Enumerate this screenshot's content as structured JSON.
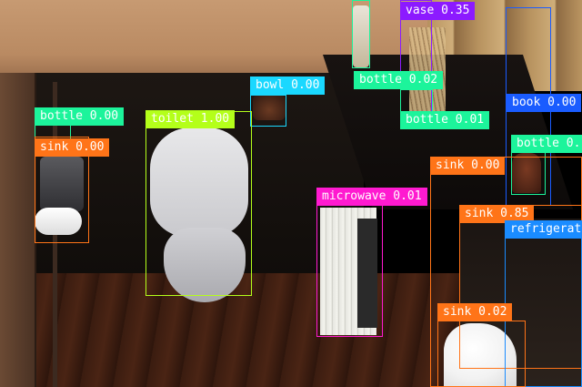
{
  "image": {
    "description_words": "bathroom photo with object-detection boxes"
  },
  "detections": [
    {
      "id": "vase",
      "label": "vase 0.35",
      "color": "#8c1aff"
    },
    {
      "id": "bottle-a",
      "label": "bottle 0.02",
      "color": "#1cf49b"
    },
    {
      "id": "bottle-b",
      "label": "bottle 0.01",
      "color": "#1cf49b"
    },
    {
      "id": "bowl",
      "label": "bowl 0.00",
      "color": "#1ad8ff"
    },
    {
      "id": "book",
      "label": "book 0.00",
      "color": "#1a5cff"
    },
    {
      "id": "bottle-c",
      "label": "bottle 0.00",
      "color": "#1cf49b"
    },
    {
      "id": "bottle-d",
      "label": "bottle 0.",
      "color": "#1cf49b"
    },
    {
      "id": "sink-a",
      "label": "sink 0.00",
      "color": "#ff7418"
    },
    {
      "id": "toilet",
      "label": "toilet 1.00",
      "color": "#b4ff1a"
    },
    {
      "id": "sink-b",
      "label": "sink 0.00",
      "color": "#ff7418"
    },
    {
      "id": "microwave",
      "label": "microwave 0.01",
      "color": "#ff1ad0"
    },
    {
      "id": "sink-c",
      "label": "sink 0.85",
      "color": "#ff7418"
    },
    {
      "id": "refrigerator",
      "label": "refrigerat",
      "color": "#1a8cff"
    },
    {
      "id": "sink-d",
      "label": "sink 0.02",
      "color": "#ff7418"
    }
  ]
}
